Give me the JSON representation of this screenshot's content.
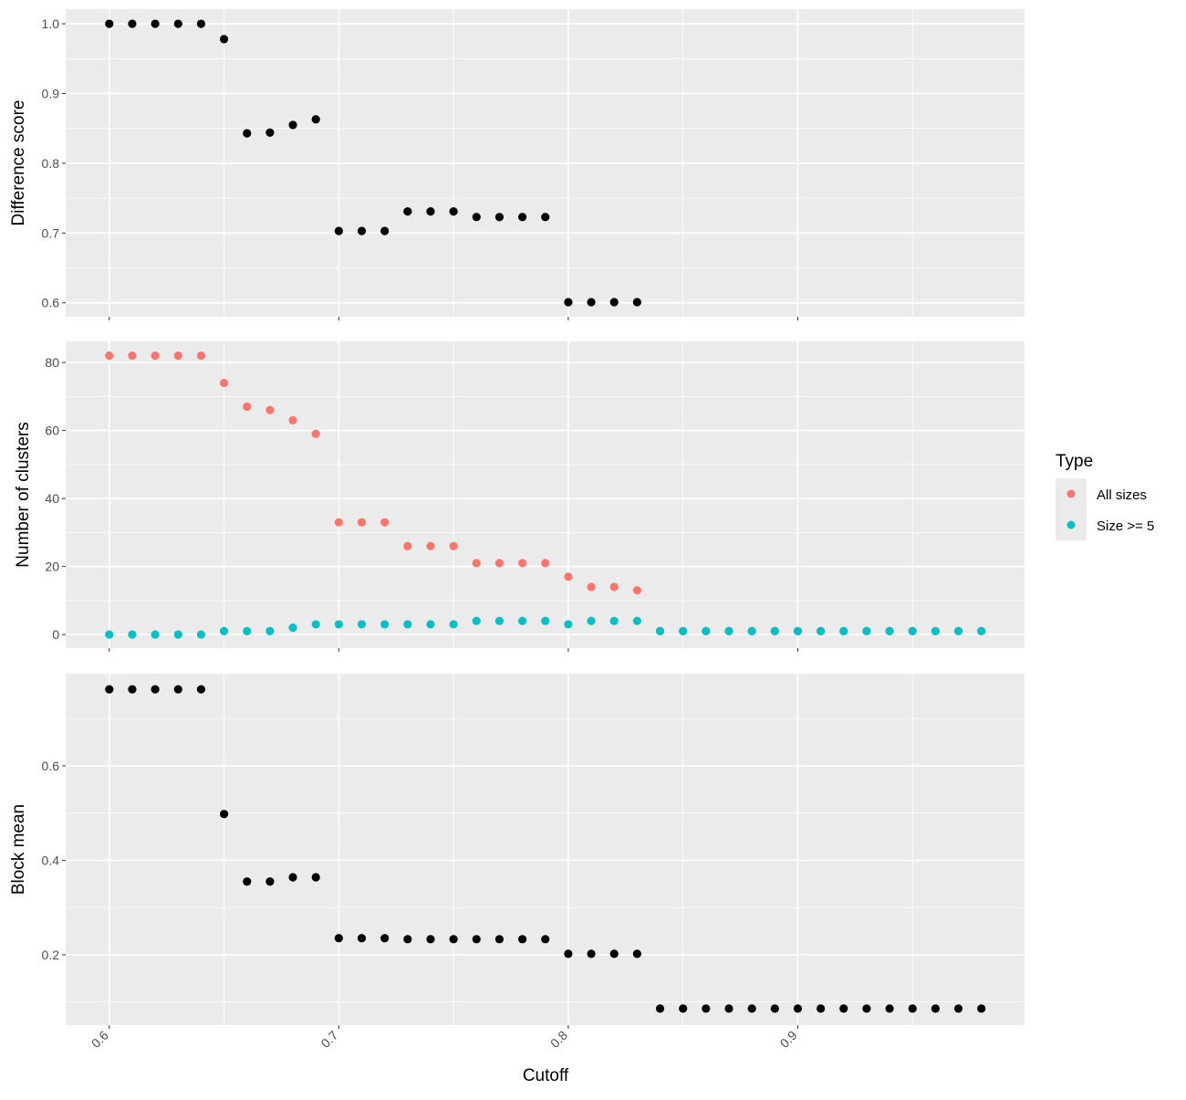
{
  "chart_data": [
    {
      "type": "scatter",
      "ylabel": "Difference score",
      "ylim": [
        0.58,
        1.021
      ],
      "yticks": [
        0.6,
        0.7,
        0.8,
        0.9,
        1.0
      ],
      "ytick_labels": [
        "0.6",
        "0.7",
        "0.8",
        "0.9",
        "1.0"
      ],
      "yminor": [
        0.65,
        0.75,
        0.85,
        0.95
      ],
      "series": [
        {
          "name": "score",
          "color": "#000000",
          "x": [
            0.6,
            0.61,
            0.62,
            0.63,
            0.64,
            0.65,
            0.66,
            0.67,
            0.68,
            0.69,
            0.7,
            0.71,
            0.72,
            0.73,
            0.74,
            0.75,
            0.76,
            0.77,
            0.78,
            0.79,
            0.8,
            0.81,
            0.82,
            0.83
          ],
          "y": [
            1.0,
            1.0,
            1.0,
            1.0,
            1.0,
            0.978,
            0.843,
            0.844,
            0.855,
            0.863,
            0.703,
            0.703,
            0.703,
            0.731,
            0.731,
            0.731,
            0.723,
            0.723,
            0.723,
            0.723,
            0.601,
            0.601,
            0.601,
            0.601
          ]
        }
      ]
    },
    {
      "type": "scatter",
      "ylabel": "Number of clusters",
      "ylim": [
        -4,
        86.2
      ],
      "yticks": [
        0,
        20,
        40,
        60,
        80
      ],
      "ytick_labels": [
        "0",
        "20",
        "40",
        "60",
        "80"
      ],
      "yminor": [
        10,
        30,
        50,
        70
      ],
      "series": [
        {
          "name": "All sizes",
          "color": "#F8766D",
          "x": [
            0.6,
            0.61,
            0.62,
            0.63,
            0.64,
            0.65,
            0.66,
            0.67,
            0.68,
            0.69,
            0.7,
            0.71,
            0.72,
            0.73,
            0.74,
            0.75,
            0.76,
            0.77,
            0.78,
            0.79,
            0.8,
            0.81,
            0.82,
            0.83,
            0.84,
            0.85,
            0.86,
            0.87,
            0.88,
            0.89,
            0.9,
            0.91,
            0.92,
            0.93,
            0.94,
            0.95,
            0.96,
            0.97,
            0.98
          ],
          "y": [
            82,
            82,
            82,
            82,
            82,
            74,
            67,
            66,
            63,
            59,
            33,
            33,
            33,
            26,
            26,
            26,
            21,
            21,
            21,
            21,
            17,
            14,
            14,
            13,
            1,
            1,
            1,
            1,
            1,
            1,
            1,
            1,
            1,
            1,
            1,
            1,
            1,
            1,
            1
          ]
        },
        {
          "name": "Size >= 5",
          "color": "#00BFC4",
          "x": [
            0.6,
            0.61,
            0.62,
            0.63,
            0.64,
            0.65,
            0.66,
            0.67,
            0.68,
            0.69,
            0.7,
            0.71,
            0.72,
            0.73,
            0.74,
            0.75,
            0.76,
            0.77,
            0.78,
            0.79,
            0.8,
            0.81,
            0.82,
            0.83,
            0.84,
            0.85,
            0.86,
            0.87,
            0.88,
            0.89,
            0.9,
            0.91,
            0.92,
            0.93,
            0.94,
            0.95,
            0.96,
            0.97,
            0.98
          ],
          "y": [
            0,
            0,
            0,
            0,
            0,
            1,
            1,
            1,
            2,
            3,
            3,
            3,
            3,
            3,
            3,
            3,
            4,
            4,
            4,
            4,
            3,
            4,
            4,
            4,
            1,
            1,
            1,
            1,
            1,
            1,
            1,
            1,
            1,
            1,
            1,
            1,
            1,
            1,
            1
          ]
        }
      ]
    },
    {
      "type": "scatter",
      "ylabel": "Block mean",
      "ylim": [
        0.051,
        0.795
      ],
      "yticks": [
        0.2,
        0.4,
        0.6
      ],
      "ytick_labels": [
        "0.2",
        "0.4",
        "0.6"
      ],
      "yminor": [
        0.1,
        0.3,
        0.5,
        0.7
      ],
      "series": [
        {
          "name": "block",
          "color": "#000000",
          "x": [
            0.6,
            0.61,
            0.62,
            0.63,
            0.64,
            0.65,
            0.66,
            0.67,
            0.68,
            0.69,
            0.7,
            0.71,
            0.72,
            0.73,
            0.74,
            0.75,
            0.76,
            0.77,
            0.78,
            0.79,
            0.8,
            0.81,
            0.82,
            0.83,
            0.84,
            0.85,
            0.86,
            0.87,
            0.88,
            0.89,
            0.9,
            0.91,
            0.92,
            0.93,
            0.94,
            0.95,
            0.96,
            0.97,
            0.98
          ],
          "y": [
            0.762,
            0.762,
            0.762,
            0.762,
            0.762,
            0.498,
            0.355,
            0.355,
            0.364,
            0.364,
            0.235,
            0.235,
            0.235,
            0.233,
            0.233,
            0.233,
            0.233,
            0.233,
            0.233,
            0.233,
            0.202,
            0.202,
            0.202,
            0.202,
            0.086,
            0.086,
            0.086,
            0.086,
            0.086,
            0.086,
            0.086,
            0.086,
            0.086,
            0.086,
            0.086,
            0.086,
            0.086,
            0.086,
            0.086
          ]
        }
      ]
    }
  ],
  "shared_x": {
    "xlabel": "Cutoff",
    "xlim": [
      0.581,
      0.9988
    ],
    "xticks": [
      0.6,
      0.7,
      0.8,
      0.9
    ],
    "xtick_labels": [
      "0.6",
      "0.7",
      "0.8",
      "0.9"
    ],
    "xminor": [
      0.65,
      0.75,
      0.85,
      0.95
    ]
  },
  "legend": {
    "title": "Type",
    "placement": "right",
    "entries": [
      {
        "label": "All sizes",
        "color": "#F8766D"
      },
      {
        "label": "Size >= 5",
        "color": "#00BFC4"
      }
    ]
  }
}
